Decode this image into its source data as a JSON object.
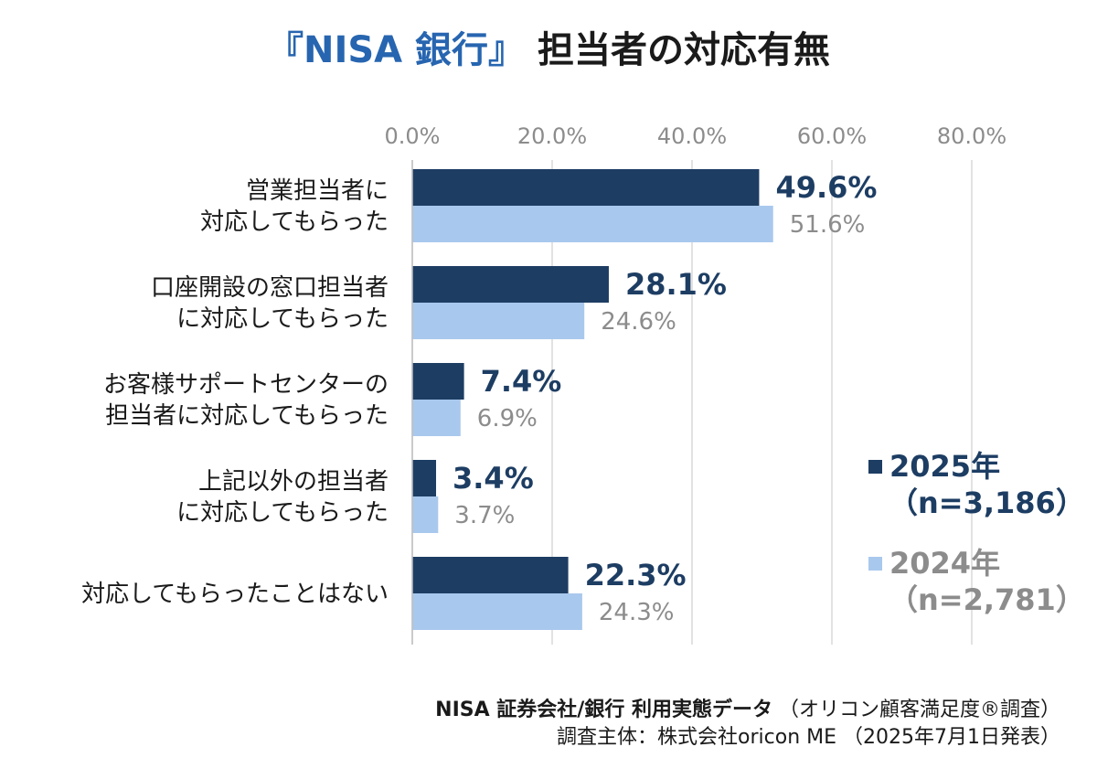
{
  "title": {
    "accent": "『NISA 銀行』",
    "rest": " 担当者の対応有無"
  },
  "chart_data": {
    "type": "bar",
    "orientation": "horizontal",
    "title": "『NISA 銀行』担当者の対応有無",
    "categories": [
      [
        "営業担当者に",
        "対応してもらった"
      ],
      [
        "口座開設の窓口担当者",
        "に対応してもらった"
      ],
      [
        "お客様サポートセンターの",
        "担当者に対応してもらった"
      ],
      [
        "上記以外の担当者",
        "に対応してもらった"
      ],
      [
        "対応してもらったことはない"
      ]
    ],
    "series": [
      {
        "name": "2025年",
        "n": "(n=3,186)",
        "color": "#1d3d63",
        "values": [
          49.6,
          28.1,
          7.4,
          3.4,
          22.3
        ]
      },
      {
        "name": "2024年",
        "n": "(n=2,781)",
        "color": "#a9c8ed",
        "values": [
          51.6,
          24.6,
          6.9,
          3.7,
          24.3
        ]
      }
    ],
    "xlim": [
      0,
      80
    ],
    "ticks": [
      0,
      20,
      40,
      60,
      80
    ],
    "tick_labels": [
      "0.0%",
      "20.0%",
      "40.0%",
      "60.0%",
      "80.0%"
    ],
    "grid": true,
    "legend": "right"
  },
  "legend": {
    "s2025": {
      "name": "2025年",
      "n": "（n=3,186）"
    },
    "s2024": {
      "name": "2024年",
      "n": "（n=2,781）"
    }
  },
  "source": {
    "line1_bold": "NISA 証券会社/銀行 利用実態データ",
    "line1_rest": "（オリコン顧客満足度®調査）",
    "line2": "調査主体：株式会社oricon ME （2025年7月1日発表）"
  }
}
